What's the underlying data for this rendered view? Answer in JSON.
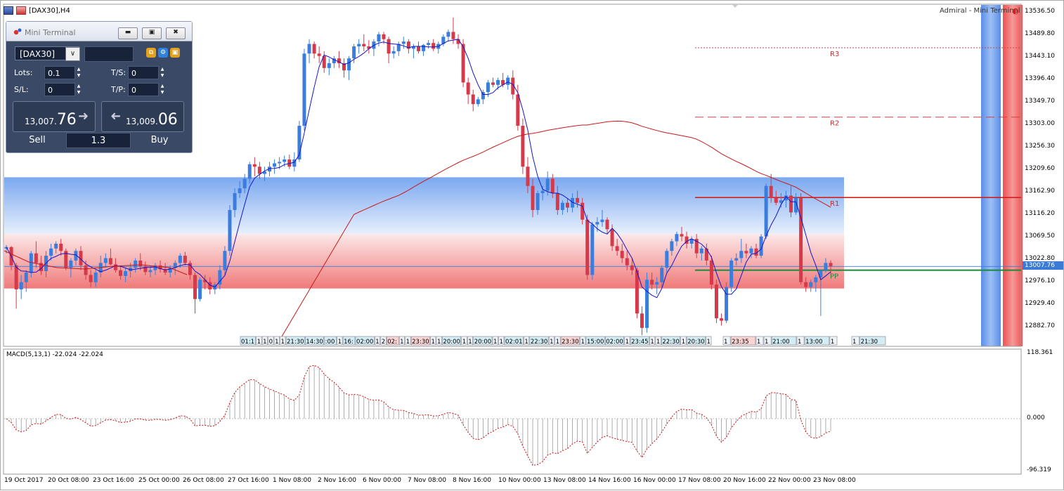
{
  "window": {
    "title": "[DAX30],H4",
    "broker_label": "Admiral - Mini Terminal"
  },
  "colors": {
    "bull": "#3b7ddd",
    "bear": "#d63a4a",
    "ma_fast": "#1515c8",
    "ma_slow": "#c81a1a",
    "pivot_pp": "#1a8a3a",
    "macd_signal": "#d01010"
  },
  "price_axis": {
    "labels": [
      "13536.50",
      "13489.80",
      "13443.10",
      "13396.40",
      "13349.70",
      "13303.00",
      "13256.30",
      "13209.60",
      "13162.90",
      "13116.20",
      "13069.50",
      "13022.80",
      "12976.10",
      "12929.40",
      "12882.70"
    ],
    "current": "13007.76"
  },
  "pivots": [
    {
      "name": "R3",
      "value": 13462
    },
    {
      "name": "R2",
      "value": 13318
    },
    {
      "name": "R1",
      "value": 13151
    },
    {
      "name": "PP",
      "value": 13000
    }
  ],
  "bands": {
    "blue_top": 13193,
    "blue_bottom": 13075,
    "red_top": 13075,
    "red_bottom": 12962
  },
  "macd": {
    "title": "MACD(5,13,1) -22.024 -22.024",
    "axis_labels": [
      "118.361",
      "0.000",
      "-96.319"
    ]
  },
  "session_labels": [
    "01:1",
    "1",
    "1",
    "0",
    "1",
    "1",
    "21:30",
    "14:30",
    ":00",
    "1",
    "16:",
    "02:00",
    "1",
    "2",
    "02:",
    "1",
    "1",
    "23:30",
    "1",
    "1",
    "20:00",
    "1",
    "1",
    "20:00",
    "1",
    "1",
    "02:01",
    "1",
    "22:30",
    "1",
    "1",
    "23:30",
    "1",
    "15:00",
    "02:00",
    "1",
    "23:45",
    "1",
    "1",
    "22:30",
    "1",
    "20:30",
    "1",
    "1",
    "23:35",
    "1",
    "1",
    "21:00",
    "1",
    "13:00",
    "1",
    "1",
    "21:30"
  ],
  "date_axis": [
    "19 Oct 2017",
    "20 Oct 08:00",
    "23 Oct 16:00",
    "25 Oct 00:00",
    "26 Oct 08:00",
    "27 Oct 16:00",
    "1 Nov 08:00",
    "2 Nov 16:00",
    "6 Nov 00:00",
    "7 Nov 08:00",
    "8 Nov 16:00",
    "10 Nov 00:00",
    "13 Nov 08:00",
    "14 Nov 16:00",
    "16 Nov 00:00",
    "17 Nov 08:00",
    "20 Nov 16:00",
    "22 Nov 00:00",
    "23 Nov 08:00"
  ],
  "mini_terminal": {
    "title": "Mini Terminal",
    "symbol": "[DAX30]",
    "lots_label": "Lots:",
    "lots": "0.1",
    "ts_label": "T/S:",
    "ts": "0",
    "sl_label": "S/L:",
    "sl": "0",
    "tp_label": "T/P:",
    "tp": "0",
    "sell_small": "13,007.",
    "sell_big": "76",
    "buy_small": "13,009.",
    "buy_big": "06",
    "sell_label": "Sell",
    "buy_label": "Buy",
    "spread": "1.3"
  },
  "chart_data": {
    "type": "candlestick",
    "title": "[DAX30],H4",
    "ylim": [
      12845,
      13555
    ],
    "candles": [
      [
        13045,
        13052,
        13035,
        13048
      ],
      [
        13048,
        13050,
        13000,
        13010
      ],
      [
        13010,
        13015,
        12920,
        12960
      ],
      [
        12960,
        12990,
        12940,
        12975
      ],
      [
        12975,
        13000,
        12955,
        12995
      ],
      [
        12995,
        13040,
        12985,
        13035
      ],
      [
        13035,
        13060,
        13005,
        13015
      ],
      [
        13015,
        13030,
        12990,
        12998
      ],
      [
        12998,
        13040,
        12985,
        13030
      ],
      [
        13030,
        13055,
        13020,
        13045
      ],
      [
        13045,
        13060,
        13035,
        13055
      ],
      [
        13055,
        13065,
        13030,
        13040
      ],
      [
        13040,
        13045,
        13000,
        13005
      ],
      [
        13005,
        13025,
        12985,
        13020
      ],
      [
        13020,
        13045,
        13010,
        13040
      ],
      [
        13040,
        13050,
        13000,
        13010
      ],
      [
        13010,
        13020,
        12980,
        12990
      ],
      [
        12990,
        13000,
        12965,
        12975
      ],
      [
        12975,
        13000,
        12965,
        12995
      ],
      [
        12995,
        13030,
        12985,
        13015
      ],
      [
        13015,
        13035,
        13005,
        13025
      ],
      [
        13025,
        13045,
        13010,
        13012
      ],
      [
        13012,
        13025,
        12995,
        13000
      ],
      [
        13000,
        13010,
        12980,
        12988
      ],
      [
        12988,
        13005,
        12975,
        12998
      ],
      [
        12998,
        13015,
        12985,
        13005
      ],
      [
        13005,
        13025,
        12995,
        13020
      ],
      [
        13020,
        13035,
        13000,
        13008
      ],
      [
        13008,
        13018,
        12990,
        12996
      ],
      [
        12996,
        13010,
        12985,
        13000
      ],
      [
        13000,
        13015,
        12990,
        13010
      ],
      [
        13010,
        13020,
        12995,
        13002
      ],
      [
        13002,
        13015,
        12990,
        12995
      ],
      [
        12995,
        13010,
        12985,
        13005
      ],
      [
        13005,
        13020,
        12990,
        13015
      ],
      [
        13015,
        13035,
        13005,
        13030
      ],
      [
        13030,
        13038,
        13010,
        13015
      ],
      [
        13015,
        13020,
        12980,
        12990
      ],
      [
        12990,
        12995,
        12910,
        12940
      ],
      [
        12940,
        12985,
        12935,
        12980
      ],
      [
        12980,
        12990,
        12960,
        12975
      ],
      [
        12975,
        12985,
        12950,
        12960
      ],
      [
        12960,
        12975,
        12950,
        12970
      ],
      [
        12970,
        13010,
        12960,
        13000
      ],
      [
        13000,
        13050,
        12990,
        13040
      ],
      [
        13040,
        13135,
        13030,
        13125
      ],
      [
        13125,
        13170,
        13110,
        13160
      ],
      [
        13160,
        13185,
        13150,
        13170
      ],
      [
        13170,
        13200,
        13160,
        13190
      ],
      [
        13190,
        13225,
        13180,
        13220
      ],
      [
        13220,
        13235,
        13195,
        13215
      ],
      [
        13215,
        13225,
        13190,
        13200
      ],
      [
        13200,
        13215,
        13185,
        13205
      ],
      [
        13205,
        13225,
        13195,
        13215
      ],
      [
        13215,
        13230,
        13200,
        13222
      ],
      [
        13222,
        13235,
        13210,
        13225
      ],
      [
        13225,
        13238,
        13215,
        13230
      ],
      [
        13230,
        13240,
        13210,
        13215
      ],
      [
        13215,
        13245,
        13205,
        13230
      ],
      [
        13230,
        13310,
        13225,
        13300
      ],
      [
        13300,
        13460,
        13290,
        13450
      ],
      [
        13450,
        13480,
        13430,
        13470
      ],
      [
        13470,
        13475,
        13440,
        13450
      ],
      [
        13450,
        13465,
        13430,
        13445
      ],
      [
        13445,
        13455,
        13410,
        13420
      ],
      [
        13420,
        13440,
        13405,
        13430
      ],
      [
        13430,
        13445,
        13420,
        13440
      ],
      [
        13440,
        13455,
        13420,
        13430
      ],
      [
        13430,
        13440,
        13400,
        13415
      ],
      [
        13415,
        13445,
        13395,
        13440
      ],
      [
        13440,
        13470,
        13430,
        13465
      ],
      [
        13465,
        13480,
        13450,
        13470
      ],
      [
        13470,
        13490,
        13455,
        13465
      ],
      [
        13465,
        13478,
        13450,
        13460
      ],
      [
        13460,
        13480,
        13445,
        13475
      ],
      [
        13475,
        13495,
        13465,
        13490
      ],
      [
        13490,
        13495,
        13470,
        13480
      ],
      [
        13480,
        13485,
        13430,
        13450
      ],
      [
        13450,
        13465,
        13440,
        13455
      ],
      [
        13455,
        13475,
        13445,
        13470
      ],
      [
        13470,
        13485,
        13460,
        13475
      ],
      [
        13475,
        13480,
        13450,
        13460
      ],
      [
        13460,
        13470,
        13440,
        13465
      ],
      [
        13465,
        13475,
        13450,
        13455
      ],
      [
        13455,
        13470,
        13445,
        13468
      ],
      [
        13468,
        13478,
        13460,
        13472
      ],
      [
        13472,
        13480,
        13455,
        13460
      ],
      [
        13460,
        13475,
        13450,
        13470
      ],
      [
        13470,
        13490,
        13465,
        13485
      ],
      [
        13485,
        13500,
        13475,
        13495
      ],
      [
        13495,
        13525,
        13470,
        13480
      ],
      [
        13480,
        13490,
        13460,
        13470
      ],
      [
        13470,
        13480,
        13380,
        13390
      ],
      [
        13390,
        13400,
        13345,
        13365
      ],
      [
        13365,
        13375,
        13330,
        13345
      ],
      [
        13345,
        13360,
        13340,
        13355
      ],
      [
        13355,
        13375,
        13345,
        13370
      ],
      [
        13370,
        13395,
        13360,
        13390
      ],
      [
        13390,
        13400,
        13380,
        13385
      ],
      [
        13385,
        13400,
        13375,
        13395
      ],
      [
        13395,
        13410,
        13380,
        13385
      ],
      [
        13385,
        13405,
        13375,
        13400
      ],
      [
        13400,
        13415,
        13355,
        13365
      ],
      [
        13365,
        13385,
        13290,
        13300
      ],
      [
        13300,
        13315,
        13200,
        13215
      ],
      [
        13215,
        13235,
        13160,
        13175
      ],
      [
        13175,
        13190,
        13110,
        13125
      ],
      [
        13125,
        13165,
        13115,
        13160
      ],
      [
        13160,
        13175,
        13145,
        13165
      ],
      [
        13165,
        13205,
        13155,
        13190
      ],
      [
        13190,
        13200,
        13150,
        13160
      ],
      [
        13160,
        13175,
        13115,
        13125
      ],
      [
        13125,
        13145,
        13115,
        13140
      ],
      [
        13140,
        13150,
        13120,
        13130
      ],
      [
        13130,
        13160,
        13120,
        13150
      ],
      [
        13150,
        13165,
        13130,
        13140
      ],
      [
        13140,
        13150,
        13095,
        13105
      ],
      [
        13105,
        13115,
        12980,
        12990
      ],
      [
        12990,
        13100,
        12980,
        13095
      ],
      [
        13095,
        13110,
        13080,
        13100
      ],
      [
        13100,
        13125,
        13090,
        13105
      ],
      [
        13105,
        13110,
        13075,
        13085
      ],
      [
        13085,
        13095,
        13040,
        13050
      ],
      [
        13050,
        13065,
        13030,
        13040
      ],
      [
        13040,
        13055,
        13015,
        13025
      ],
      [
        13025,
        13040,
        13000,
        13010
      ],
      [
        13010,
        13025,
        12990,
        13000
      ],
      [
        13000,
        13005,
        12900,
        12910
      ],
      [
        12910,
        12925,
        12865,
        12880
      ],
      [
        12880,
        12995,
        12870,
        12980
      ],
      [
        12980,
        12995,
        12960,
        12970
      ],
      [
        12970,
        12985,
        12950,
        12975
      ],
      [
        12975,
        13010,
        12965,
        13005
      ],
      [
        13005,
        13045,
        12995,
        13040
      ],
      [
        13040,
        13065,
        13030,
        13060
      ],
      [
        13060,
        13080,
        13050,
        13075
      ],
      [
        13075,
        13090,
        13060,
        13070
      ],
      [
        13070,
        13080,
        13045,
        13055
      ],
      [
        13055,
        13070,
        13045,
        13065
      ],
      [
        13065,
        13075,
        13025,
        13035
      ],
      [
        13035,
        13050,
        13020,
        13045
      ],
      [
        13045,
        13055,
        13010,
        13020
      ],
      [
        13020,
        13030,
        12960,
        12970
      ],
      [
        12970,
        12980,
        12890,
        12900
      ],
      [
        12900,
        12910,
        12885,
        12895
      ],
      [
        12895,
        12975,
        12890,
        12965
      ],
      [
        12965,
        13025,
        12955,
        13020
      ],
      [
        13020,
        13035,
        13010,
        13025
      ],
      [
        13025,
        13065,
        13015,
        13040
      ],
      [
        13040,
        13055,
        13025,
        13035
      ],
      [
        13035,
        13050,
        13025,
        13045
      ],
      [
        13045,
        13055,
        13025,
        13030
      ],
      [
        13030,
        13075,
        13025,
        13070
      ],
      [
        13070,
        13180,
        13065,
        13175
      ],
      [
        13175,
        13200,
        13140,
        13150
      ],
      [
        13150,
        13165,
        13135,
        13140
      ],
      [
        13140,
        13160,
        13130,
        13145
      ],
      [
        13145,
        13165,
        13130,
        13155
      ],
      [
        13155,
        13175,
        13110,
        13120
      ],
      [
        13120,
        13160,
        13115,
        13150
      ],
      [
        13150,
        13160,
        12970,
        12975
      ],
      [
        12975,
        12985,
        12955,
        12965
      ],
      [
        12965,
        12980,
        12955,
        12975
      ],
      [
        12975,
        12990,
        12955,
        12985
      ],
      [
        12985,
        13000,
        12905,
        13000
      ],
      [
        13000,
        13025,
        12995,
        13015
      ],
      [
        13015,
        13020,
        12990,
        13008
      ]
    ]
  }
}
